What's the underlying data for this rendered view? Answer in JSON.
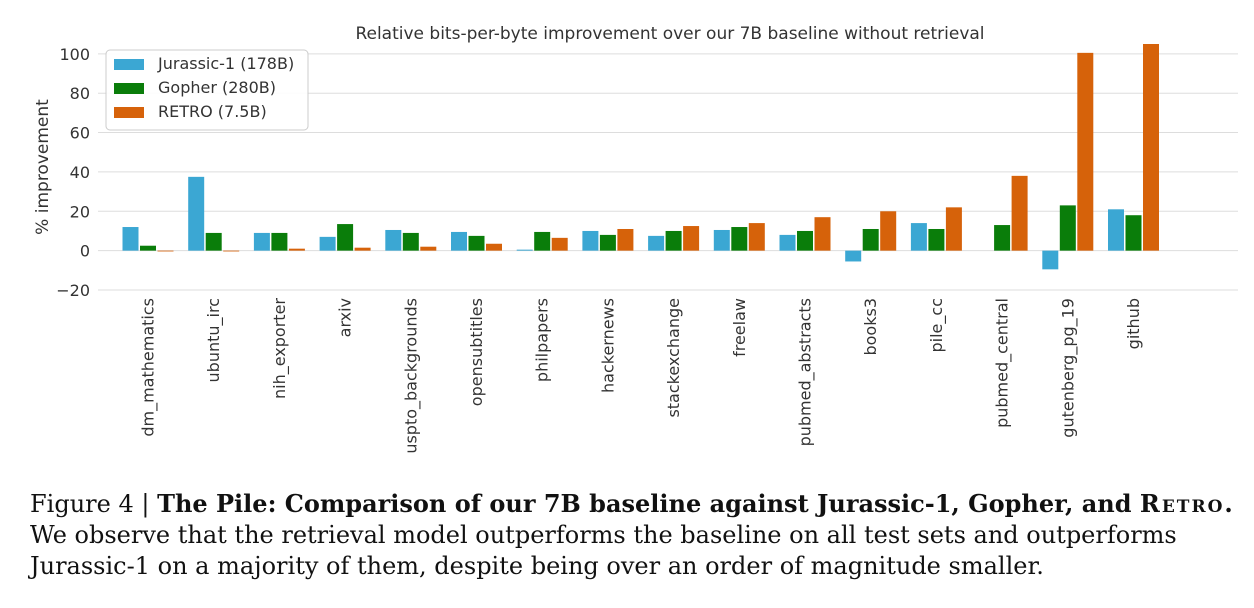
{
  "chart_data": {
    "type": "bar",
    "title": "Relative bits-per-byte improvement over our 7B baseline without retrieval",
    "ylabel": "% improvement",
    "xlabel": "",
    "ylim": [
      -20,
      105
    ],
    "yticks": [
      100,
      80,
      60,
      40,
      20,
      0,
      -20
    ],
    "ytick_labels": [
      "100",
      "80",
      "60",
      "40",
      "20",
      "0",
      "−20"
    ],
    "grid": true,
    "legend_position": "top-left",
    "categories": [
      "dm_mathematics",
      "ubuntu_irc",
      "nih_exporter",
      "arxiv",
      "uspto_backgrounds",
      "opensubtitles",
      "philpapers",
      "hackernews",
      "stackexchange",
      "freelaw",
      "pubmed_abstracts",
      "books3",
      "pile_cc",
      "pubmed_central",
      "gutenberg_pg_19",
      "github"
    ],
    "series": [
      {
        "name": "Jurassic-1 (178B)",
        "color": "#3ba7d3",
        "values": [
          12,
          37.5,
          9,
          7,
          10.5,
          9.5,
          0.5,
          10,
          7.5,
          10.5,
          8,
          -5.5,
          14,
          null,
          -9.5,
          21
        ]
      },
      {
        "name": "Gopher (280B)",
        "color": "#0a7d0a",
        "values": [
          2.5,
          9,
          9,
          13.5,
          9,
          7.5,
          9.5,
          8,
          10,
          12,
          10,
          11,
          11,
          13,
          23,
          18
        ]
      },
      {
        "name": "RETRO (7.5B)",
        "color": "#d6620a",
        "values": [
          0,
          0,
          1,
          1.5,
          2,
          3.5,
          6.5,
          11,
          12.5,
          14,
          17,
          20,
          22,
          38,
          100.5,
          105
        ]
      }
    ]
  },
  "caption": {
    "figure_label": "Figure 4 | ",
    "bold_part": "The Pile: Comparison of our 7B baseline against Jurassic-1, Gopher, and ",
    "retro_word": "Retro.",
    "rest": " We observe that the retrieval model outperforms the baseline on all test sets and outperforms Jurassic-1 on a majority of them, despite being over an order of magnitude smaller."
  }
}
